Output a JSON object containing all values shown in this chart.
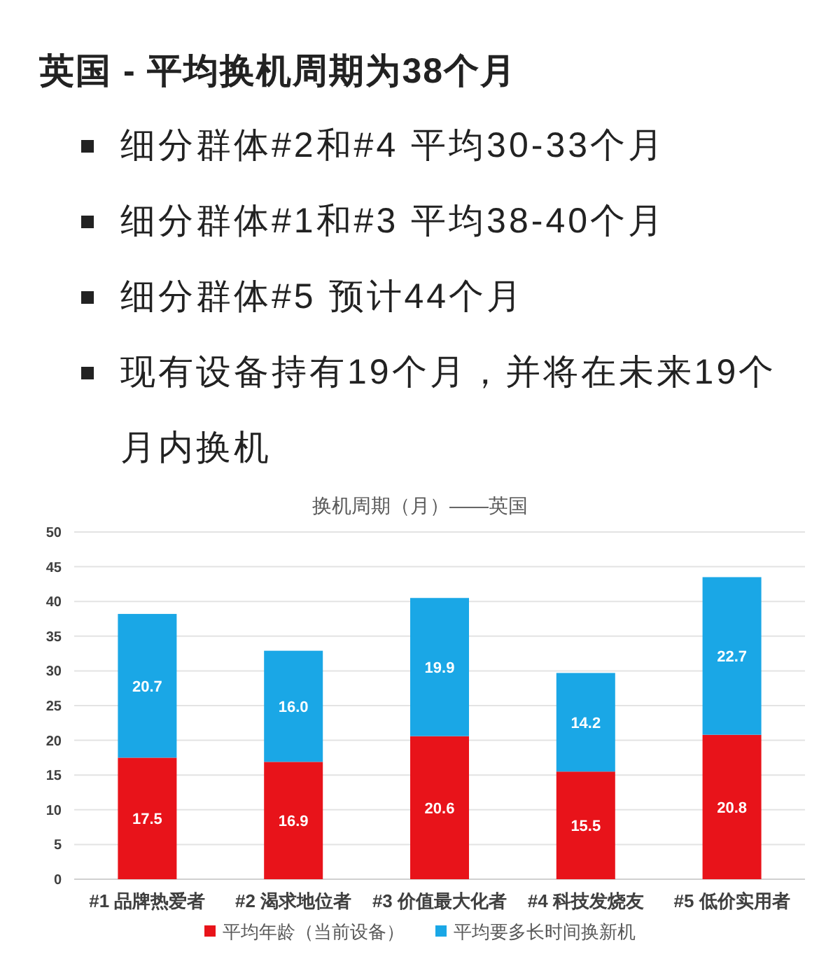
{
  "chart_data": {
    "type": "bar",
    "stacked": true,
    "title": "换机周期（月）——英国",
    "annotations": [
      "英国 - 平均换机周期为38个月",
      "细分群体#2和#4 平均30-33个月",
      "细分群体#1和#3 平均38-40个月",
      "细分群体#5 预计44个月",
      "现有设备持有19个月，并将在未来19个月内换机"
    ],
    "categories": [
      "#1 品牌热爱者",
      "#2 渴求地位者",
      "#3 价值最大化者",
      "#4 科技发烧友",
      "#5 低价实用者"
    ],
    "series": [
      {
        "name": "平均年龄（当前设备）",
        "color": "#e8131a",
        "values": [
          17.5,
          16.9,
          20.6,
          15.5,
          20.8
        ],
        "value_labels": [
          "17.5",
          "16.9",
          "20.6",
          "15.5",
          "20.8"
        ]
      },
      {
        "name": "平均要多长时间换新机",
        "color": "#1aa7e6",
        "values": [
          20.7,
          16.0,
          19.9,
          14.2,
          22.7
        ],
        "value_labels": [
          "20.7",
          "16.0",
          "19.9",
          "14.2",
          "22.7"
        ]
      }
    ],
    "ylim": [
      0,
      50
    ],
    "yticks": [
      0,
      5,
      10,
      15,
      20,
      25,
      30,
      35,
      40,
      45,
      50
    ],
    "grid": "y",
    "legend": "bottom"
  }
}
